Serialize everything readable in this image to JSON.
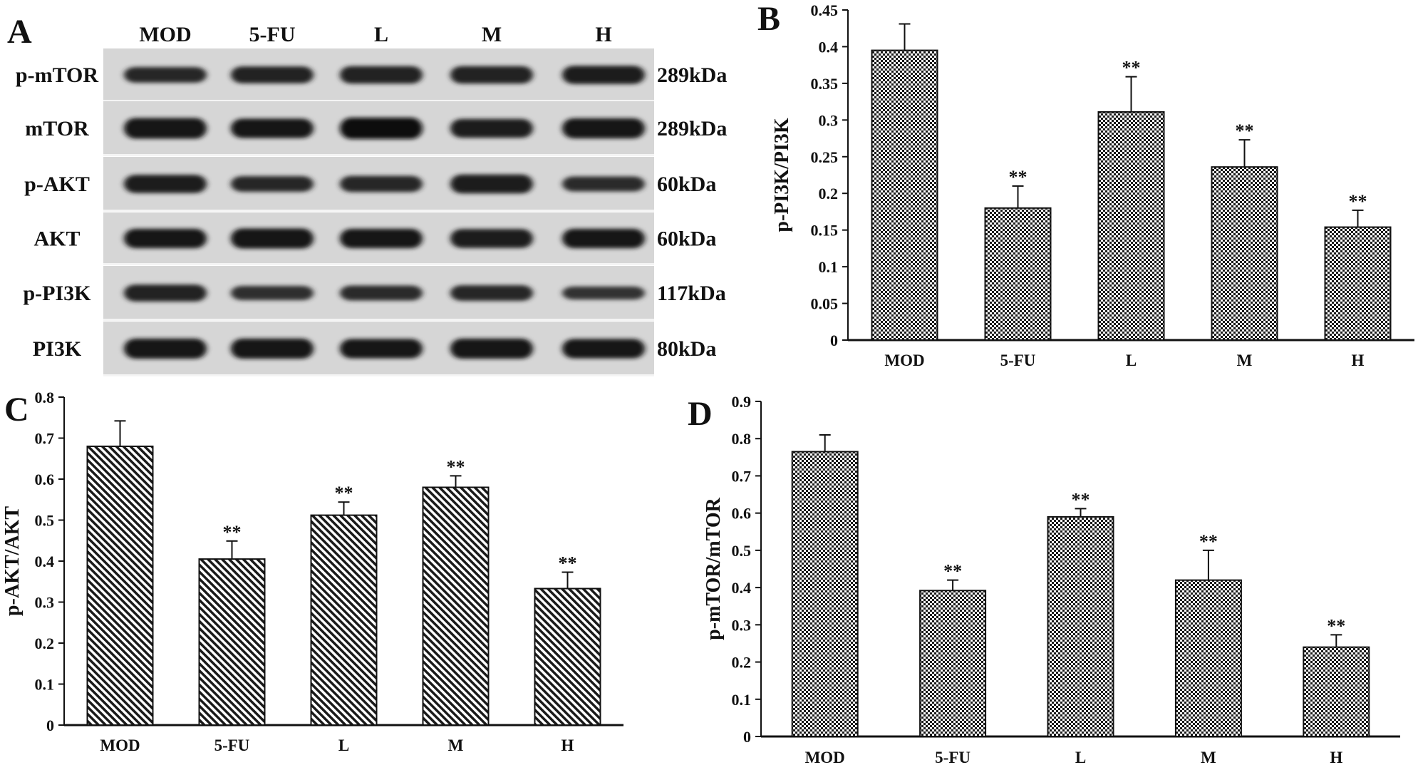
{
  "panel_labels": {
    "a": "A",
    "b": "B",
    "c": "C",
    "d": "D"
  },
  "blot": {
    "lanes": [
      "MOD",
      "5-FU",
      "L",
      "M",
      "H"
    ],
    "rows": [
      {
        "label": "p-mTOR",
        "kda": "289kDa",
        "intensity": [
          0.55,
          0.65,
          0.7,
          0.7,
          0.75
        ]
      },
      {
        "label": "mTOR",
        "kda": "289kDa",
        "intensity": [
          0.95,
          0.85,
          1.0,
          0.8,
          0.9
        ]
      },
      {
        "label": "p-AKT",
        "kda": "60kDa",
        "intensity": [
          0.75,
          0.55,
          0.6,
          0.8,
          0.5
        ]
      },
      {
        "label": "AKT",
        "kda": "60kDa",
        "intensity": [
          0.85,
          0.9,
          0.85,
          0.8,
          0.85
        ]
      },
      {
        "label": "p-PI3K",
        "kda": "117kDa",
        "intensity": [
          0.65,
          0.45,
          0.5,
          0.55,
          0.35
        ]
      },
      {
        "label": "PI3K",
        "kda": "80kDa",
        "intensity": [
          0.9,
          0.9,
          0.85,
          0.9,
          0.85
        ]
      }
    ]
  },
  "chart_data": [
    {
      "panel": "B",
      "type": "bar",
      "pattern": "checker",
      "categories": [
        "MOD",
        "5-FU",
        "L",
        "M",
        "H"
      ],
      "values": [
        0.395,
        0.18,
        0.311,
        0.236,
        0.154
      ],
      "errors": [
        0.036,
        0.03,
        0.048,
        0.037,
        0.023
      ],
      "annotations": [
        "",
        "**",
        "**",
        "**",
        "**"
      ],
      "ylabel": "p-PI3K/PI3K",
      "ylim": [
        0,
        0.45
      ],
      "yticks": [
        "0",
        "0.05",
        "0.1",
        "0.15",
        "0.2",
        "0.25",
        "0.3",
        "0.35",
        "0.4",
        "0.45"
      ],
      "grid": false
    },
    {
      "panel": "C",
      "type": "bar",
      "pattern": "diagonal",
      "categories": [
        "MOD",
        "5-FU",
        "L",
        "M",
        "H"
      ],
      "values": [
        0.68,
        0.405,
        0.512,
        0.58,
        0.333
      ],
      "errors": [
        0.062,
        0.044,
        0.032,
        0.028,
        0.04
      ],
      "annotations": [
        "",
        "**",
        "**",
        "**",
        "**"
      ],
      "ylabel": "p-AKT/AKT",
      "ylim": [
        0,
        0.8
      ],
      "yticks": [
        "0",
        "0.1",
        "0.2",
        "0.3",
        "0.4",
        "0.5",
        "0.6",
        "0.7",
        "0.8"
      ],
      "grid": false
    },
    {
      "panel": "D",
      "type": "bar",
      "pattern": "checker",
      "categories": [
        "MOD",
        "5-FU",
        "L",
        "M",
        "H"
      ],
      "values": [
        0.765,
        0.392,
        0.59,
        0.42,
        0.24
      ],
      "errors": [
        0.045,
        0.028,
        0.022,
        0.08,
        0.033
      ],
      "annotations": [
        "",
        "**",
        "**",
        "**",
        "**"
      ],
      "ylabel": "p-mTOR/mTOR",
      "ylim": [
        0,
        0.9
      ],
      "yticks": [
        "0",
        "0.1",
        "0.2",
        "0.3",
        "0.4",
        "0.5",
        "0.6",
        "0.7",
        "0.8",
        "0.9"
      ],
      "grid": false
    }
  ]
}
